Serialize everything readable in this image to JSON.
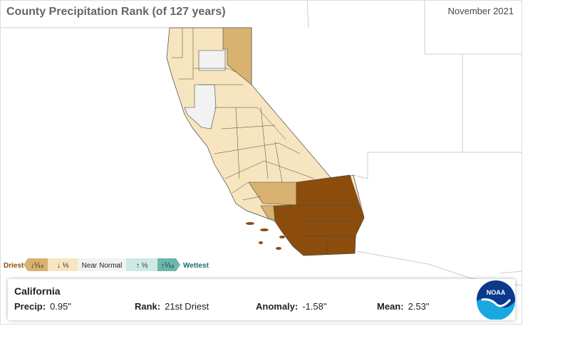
{
  "header": {
    "title": "County Precipitation Rank (of 127 years)",
    "date": "November 2021"
  },
  "legend": {
    "driest": "Driest",
    "items": [
      "↓⅒",
      "↓ ⅓",
      "Near Normal",
      "↑ ⅓",
      "↑⅒"
    ],
    "wettest": "Wettest"
  },
  "info": {
    "region": "California",
    "fields": [
      {
        "label": "Precip:",
        "value": "0.95\""
      },
      {
        "label": "Rank:",
        "value": "21st Driest"
      },
      {
        "label": "Anomaly:",
        "value": "-1.58\""
      },
      {
        "label": "Mean:",
        "value": "2.53\""
      }
    ]
  },
  "logo": {
    "text": "NOAA"
  }
}
